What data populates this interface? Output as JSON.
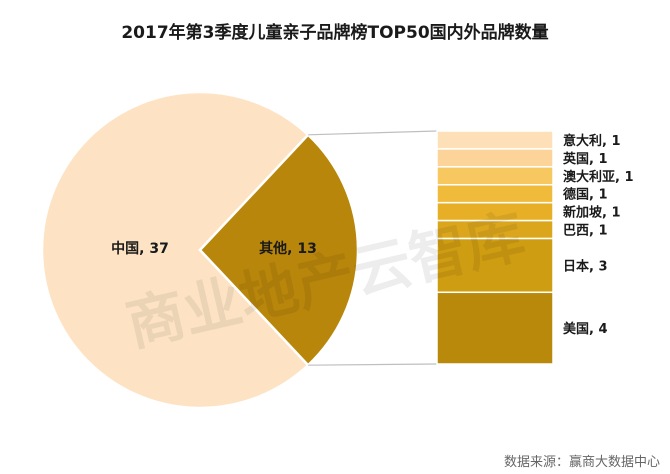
{
  "chart_data": {
    "type": "pie",
    "title": "2017年第3季度儿童亲子品牌榜TOP50国内外品牌数量",
    "slices": [
      {
        "label": "中国",
        "value": 37,
        "color": "#fde3c3"
      },
      {
        "label": "其他",
        "value": 13,
        "color": "#b8860b"
      }
    ],
    "breakdown": {
      "of": "其他",
      "type": "stacked-bar",
      "items": [
        {
          "label": "意大利",
          "value": 1,
          "color": "#fde0b7"
        },
        {
          "label": "英国",
          "value": 1,
          "color": "#fcd49a"
        },
        {
          "label": "澳大利亚",
          "value": 1,
          "color": "#f6c85f"
        },
        {
          "label": "德国",
          "value": 1,
          "color": "#f0bb3a"
        },
        {
          "label": "新加坡",
          "value": 1,
          "color": "#e6af25"
        },
        {
          "label": "巴西",
          "value": 1,
          "color": "#dba61c"
        },
        {
          "label": "日本",
          "value": 3,
          "color": "#cf9d12"
        },
        {
          "label": "美国",
          "value": 4,
          "color": "#b8890b"
        }
      ]
    }
  },
  "watermark": "商业地产云智库",
  "source": "数据来源：赢商大数据中心"
}
